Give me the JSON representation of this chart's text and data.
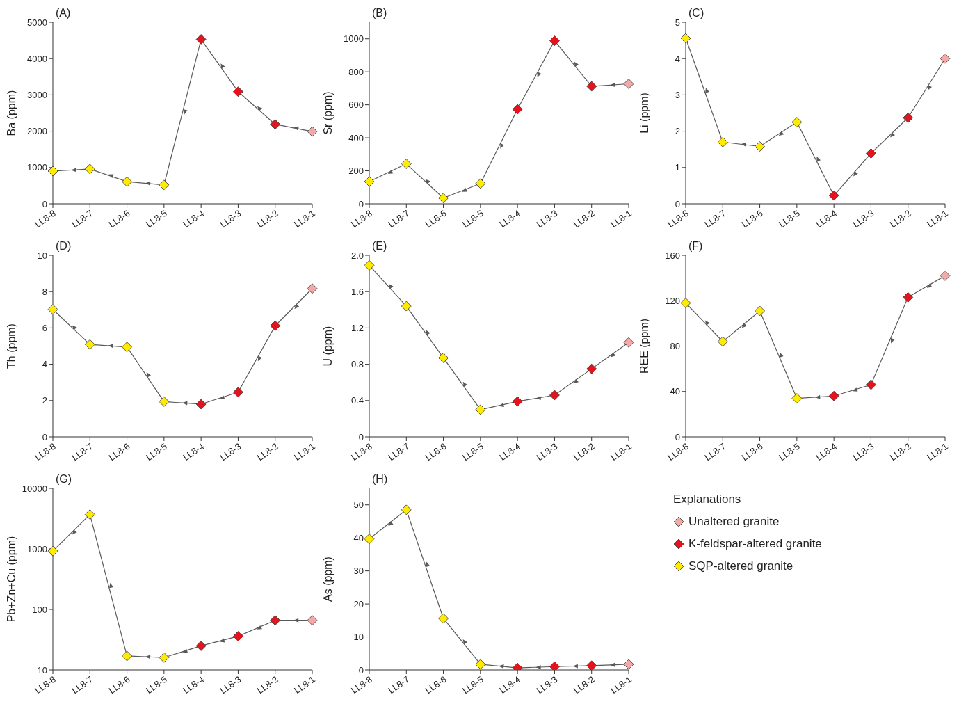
{
  "chart_data": [
    {
      "type": "line",
      "title": "(A)",
      "ylabel": "Ba (ppm)",
      "categories": [
        "LL8-8",
        "LL8-7",
        "LL8-6",
        "LL8-5",
        "LL8-4",
        "LL8-3",
        "LL8-2",
        "LL8-1"
      ],
      "ylim": [
        0,
        5000
      ],
      "yticks": [
        0,
        1000,
        2000,
        3000,
        4000,
        5000
      ],
      "series": [
        {
          "color": "#595959",
          "marker": "none",
          "values": [
            900,
            960,
            610,
            520,
            4530,
            3090,
            2190,
            1990
          ]
        },
        {
          "type": "scatter",
          "marker": "diamond",
          "color": "#f4a9a9",
          "values": [
            null,
            null,
            null,
            null,
            null,
            null,
            null,
            1990
          ]
        },
        {
          "type": "scatter",
          "marker": "diamond",
          "color": "#e3141e",
          "values": [
            null,
            null,
            null,
            null,
            4530,
            3090,
            2190,
            null
          ]
        },
        {
          "type": "scatter",
          "marker": "diamond",
          "color": "#ffeb00",
          "values": [
            900,
            960,
            610,
            520,
            null,
            null,
            null,
            null
          ]
        }
      ]
    },
    {
      "type": "line",
      "title": "(B)",
      "ylabel": "Sr (ppm)",
      "categories": [
        "LL8-8",
        "LL8-7",
        "LL8-6",
        "LL8-5",
        "LL8-4",
        "LL8-3",
        "LL8-2",
        "LL8-1"
      ],
      "ylim": [
        0,
        1100
      ],
      "yticks": [
        0,
        200,
        400,
        600,
        800,
        1000
      ],
      "series": [
        {
          "color": "#595959",
          "marker": "none",
          "values": [
            135,
            242,
            35,
            123,
            573,
            988,
            712,
            727
          ]
        },
        {
          "type": "scatter",
          "marker": "diamond",
          "color": "#f4a9a9",
          "values": [
            null,
            null,
            null,
            null,
            null,
            null,
            null,
            727
          ]
        },
        {
          "type": "scatter",
          "marker": "diamond",
          "color": "#e3141e",
          "values": [
            null,
            null,
            null,
            null,
            573,
            988,
            712,
            null
          ]
        },
        {
          "type": "scatter",
          "marker": "diamond",
          "color": "#ffeb00",
          "values": [
            135,
            242,
            35,
            123,
            null,
            null,
            null,
            null
          ]
        }
      ]
    },
    {
      "type": "line",
      "title": "(C)",
      "ylabel": "Li (ppm)",
      "categories": [
        "LL8-8",
        "LL8-7",
        "LL8-6",
        "LL8-5",
        "LL8-4",
        "LL8-3",
        "LL8-2",
        "LL8-1"
      ],
      "ylim": [
        0,
        5
      ],
      "yticks": [
        0,
        1,
        2,
        3,
        4,
        5
      ],
      "series": [
        {
          "color": "#595959",
          "marker": "none",
          "values": [
            4.56,
            1.7,
            1.58,
            2.25,
            0.23,
            1.39,
            2.37,
            4.0
          ]
        },
        {
          "type": "scatter",
          "marker": "diamond",
          "color": "#f4a9a9",
          "values": [
            null,
            null,
            null,
            null,
            null,
            null,
            null,
            4.0
          ]
        },
        {
          "type": "scatter",
          "marker": "diamond",
          "color": "#e3141e",
          "values": [
            null,
            null,
            null,
            null,
            0.23,
            1.39,
            2.37,
            null
          ]
        },
        {
          "type": "scatter",
          "marker": "diamond",
          "color": "#ffeb00",
          "values": [
            4.56,
            1.7,
            1.58,
            2.25,
            null,
            null,
            null,
            null
          ]
        }
      ]
    },
    {
      "type": "line",
      "title": "(D)",
      "ylabel": "Th (ppm)",
      "categories": [
        "LL8-8",
        "LL8-7",
        "LL8-6",
        "LL8-5",
        "LL8-4",
        "LL8-3",
        "LL8-2",
        "LL8-1"
      ],
      "ylim": [
        0,
        10
      ],
      "yticks": [
        0,
        2,
        4,
        6,
        8,
        10
      ],
      "series": [
        {
          "color": "#595959",
          "marker": "none",
          "values": [
            7.02,
            5.09,
            4.95,
            1.94,
            1.8,
            2.46,
            6.12,
            8.17
          ]
        },
        {
          "type": "scatter",
          "marker": "diamond",
          "color": "#f4a9a9",
          "values": [
            null,
            null,
            null,
            null,
            null,
            null,
            null,
            8.17
          ]
        },
        {
          "type": "scatter",
          "marker": "diamond",
          "color": "#e3141e",
          "values": [
            null,
            null,
            null,
            null,
            1.8,
            2.46,
            6.12,
            null
          ]
        },
        {
          "type": "scatter",
          "marker": "diamond",
          "color": "#ffeb00",
          "values": [
            7.02,
            5.09,
            4.95,
            1.94,
            null,
            null,
            null,
            null
          ]
        }
      ]
    },
    {
      "type": "line",
      "title": "(E)",
      "ylabel": "U (ppm)",
      "categories": [
        "LL8-8",
        "LL8-7",
        "LL8-6",
        "LL8-5",
        "LL8-4",
        "LL8-3",
        "LL8-2",
        "LL8-1"
      ],
      "ylim": [
        0,
        2
      ],
      "yticks": [
        0,
        0.4,
        0.8,
        1.2,
        1.6,
        {
          "value": 2,
          "label": "2.0"
        }
      ],
      "series": [
        {
          "color": "#595959",
          "marker": "none",
          "values": [
            1.89,
            1.44,
            0.87,
            0.3,
            0.39,
            0.46,
            0.75,
            1.04
          ]
        },
        {
          "type": "scatter",
          "marker": "diamond",
          "color": "#f4a9a9",
          "values": [
            null,
            null,
            null,
            null,
            null,
            null,
            null,
            1.04
          ]
        },
        {
          "type": "scatter",
          "marker": "diamond",
          "color": "#e3141e",
          "values": [
            null,
            null,
            null,
            null,
            0.39,
            0.46,
            0.75,
            null
          ]
        },
        {
          "type": "scatter",
          "marker": "diamond",
          "color": "#ffeb00",
          "values": [
            1.89,
            1.44,
            0.87,
            0.3,
            null,
            null,
            null,
            null
          ]
        }
      ]
    },
    {
      "type": "line",
      "title": "(F)",
      "ylabel": "REE (ppm)",
      "categories": [
        "LL8-8",
        "LL8-7",
        "LL8-6",
        "LL8-5",
        "LL8-4",
        "LL8-3",
        "LL8-2",
        "LL8-1"
      ],
      "ylim": [
        0,
        160
      ],
      "yticks": [
        0,
        40,
        80,
        120,
        160
      ],
      "series": [
        {
          "color": "#595959",
          "marker": "none",
          "values": [
            118,
            84,
            111,
            34,
            36,
            46,
            123,
            142
          ]
        },
        {
          "type": "scatter",
          "marker": "diamond",
          "color": "#f4a9a9",
          "values": [
            null,
            null,
            null,
            null,
            null,
            null,
            null,
            142
          ]
        },
        {
          "type": "scatter",
          "marker": "diamond",
          "color": "#e3141e",
          "values": [
            null,
            null,
            null,
            null,
            36,
            46,
            123,
            null
          ]
        },
        {
          "type": "scatter",
          "marker": "diamond",
          "color": "#ffeb00",
          "values": [
            118,
            84,
            111,
            34,
            null,
            null,
            null,
            null
          ]
        }
      ]
    },
    {
      "type": "line",
      "title": "(G)",
      "ylabel": "Pb+Zn+Cu (ppm)",
      "categories": [
        "LL8-8",
        "LL8-7",
        "LL8-6",
        "LL8-5",
        "LL8-4",
        "LL8-3",
        "LL8-2",
        "LL8-1"
      ],
      "log": true,
      "ylim": [
        10,
        10000
      ],
      "yticks": [
        10,
        100,
        1000,
        10000
      ],
      "series": [
        {
          "color": "#595959",
          "marker": "none",
          "values": [
            920,
            3700,
            17,
            16,
            25,
            36,
            66,
            66
          ]
        },
        {
          "type": "scatter",
          "marker": "diamond",
          "color": "#f4a9a9",
          "values": [
            null,
            null,
            null,
            null,
            null,
            null,
            null,
            66
          ]
        },
        {
          "type": "scatter",
          "marker": "diamond",
          "color": "#e3141e",
          "values": [
            null,
            null,
            null,
            null,
            25,
            36,
            66,
            null
          ]
        },
        {
          "type": "scatter",
          "marker": "diamond",
          "color": "#ffeb00",
          "values": [
            920,
            3700,
            17,
            16,
            null,
            null,
            null,
            null
          ]
        }
      ]
    },
    {
      "type": "line",
      "title": "(H)",
      "ylabel": "As (ppm)",
      "categories": [
        "LL8-8",
        "LL8-7",
        "LL8-6",
        "LL8-5",
        "LL8-4",
        "LL8-3",
        "LL8-2",
        "LL8-1"
      ],
      "ylim": [
        0,
        55
      ],
      "yticks": [
        0,
        10,
        20,
        30,
        40,
        50
      ],
      "legend": "right",
      "legend_title": "Explanations",
      "series": [
        {
          "color": "#595959",
          "marker": "none",
          "values": [
            39.7,
            48.5,
            15.6,
            1.7,
            0.6,
            1.0,
            1.3,
            1.7
          ]
        },
        {
          "type": "scatter",
          "marker": "diamond",
          "name": "Unaltered granite",
          "color": "#f4a9a9",
          "values": [
            null,
            null,
            null,
            null,
            null,
            null,
            null,
            1.7
          ]
        },
        {
          "type": "scatter",
          "marker": "diamond",
          "name": "K-feldspar-altered granite",
          "color": "#e3141e",
          "values": [
            null,
            null,
            null,
            null,
            0.6,
            1.0,
            1.3,
            null
          ]
        },
        {
          "type": "scatter",
          "marker": "diamond",
          "name": "SQP-altered granite",
          "color": "#ffeb00",
          "values": [
            39.7,
            48.5,
            15.6,
            1.7,
            null,
            null,
            null,
            null
          ]
        }
      ]
    }
  ]
}
